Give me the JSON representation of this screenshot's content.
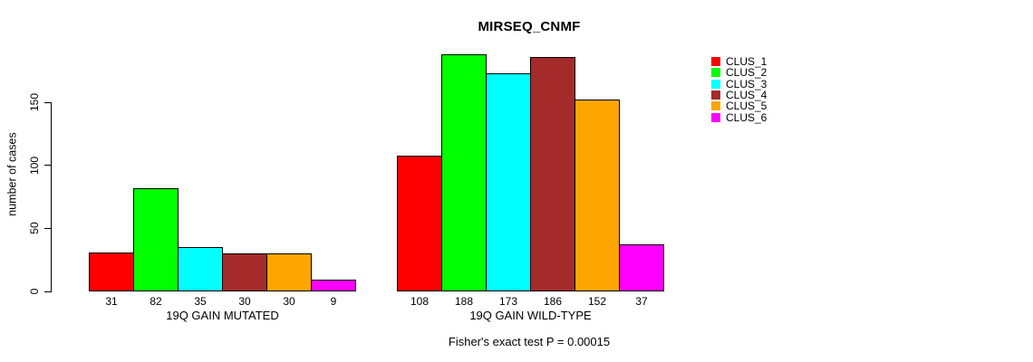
{
  "chart_data": {
    "type": "bar",
    "title": "MIRSEQ_CNMF",
    "ylabel": "number of cases",
    "yticks": [
      0,
      50,
      100,
      150
    ],
    "ylim": [
      0,
      195
    ],
    "grid": false,
    "legend_position": "right-outside",
    "bar_value_labels_shown": true,
    "legend": [
      {
        "label": "CLUS_1",
        "color": "#FF0000"
      },
      {
        "label": "CLUS_2",
        "color": "#00FF00"
      },
      {
        "label": "CLUS_3",
        "color": "#00FFFF"
      },
      {
        "label": "CLUS_4",
        "color": "#A52A2A"
      },
      {
        "label": "CLUS_5",
        "color": "#FFA500"
      },
      {
        "label": "CLUS_6",
        "color": "#FF00FF"
      }
    ],
    "groups": [
      {
        "label": "19Q GAIN MUTATED",
        "values": [
          31,
          82,
          35,
          30,
          30,
          9
        ]
      },
      {
        "label": "19Q GAIN WILD-TYPE",
        "values": [
          108,
          188,
          173,
          186,
          152,
          37
        ]
      }
    ],
    "subtitle": "Fisher's exact test P = 0.00015"
  }
}
